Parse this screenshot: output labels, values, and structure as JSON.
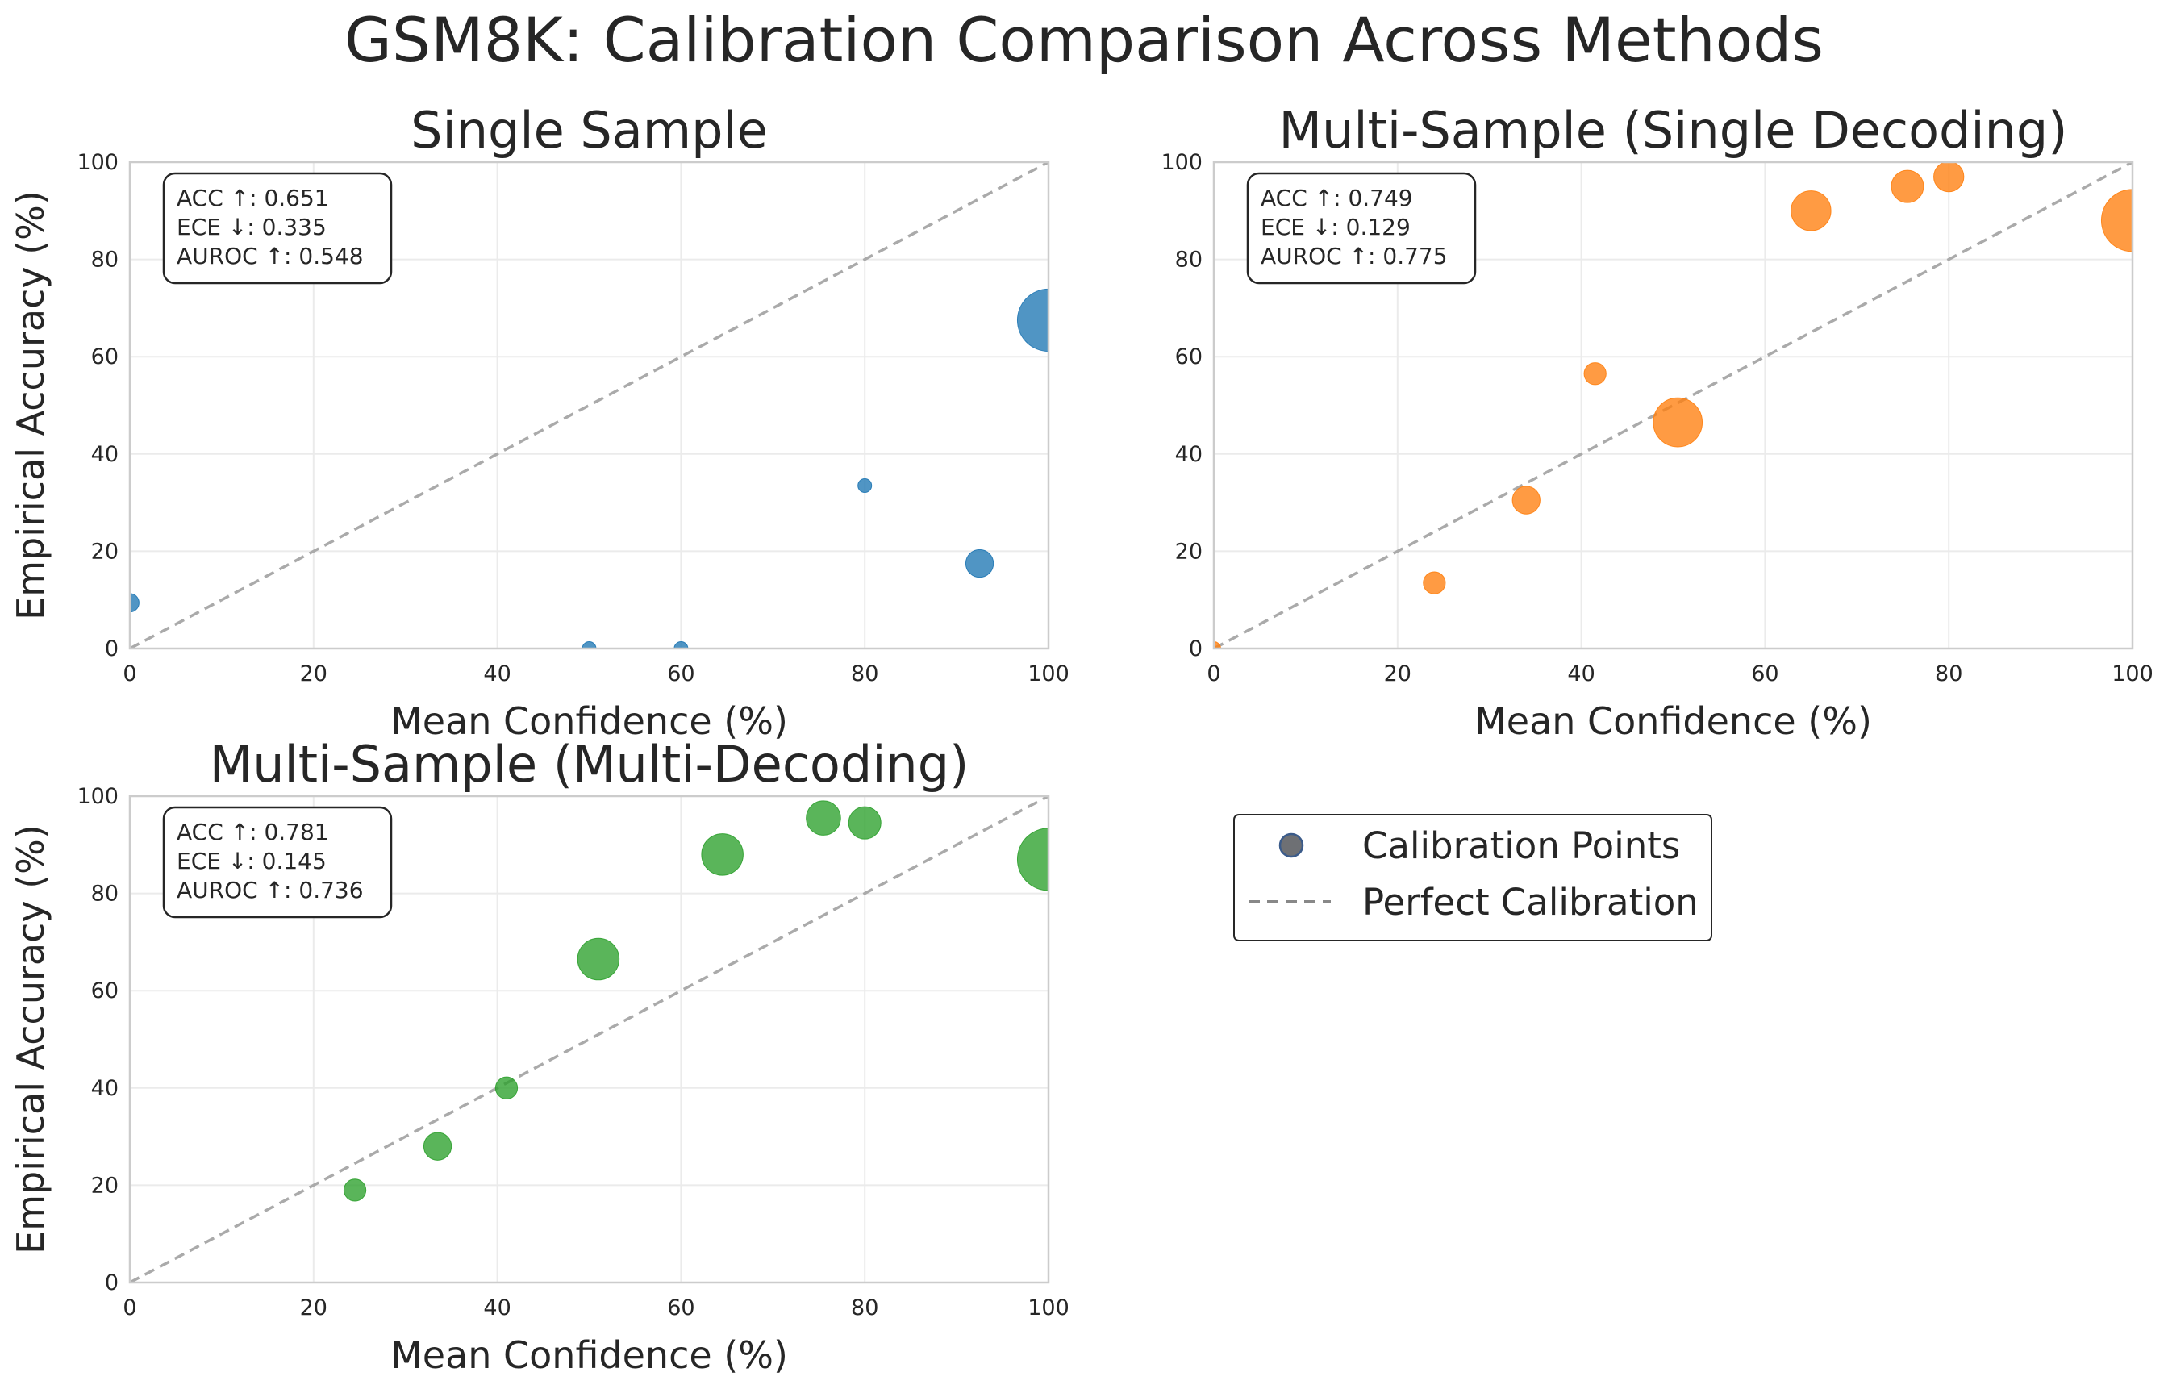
{
  "figure": {
    "title": "GSM8K: Calibration Comparison Across Methods"
  },
  "legend": {
    "points_label": "Calibration Points",
    "line_label": "Perfect Calibration"
  },
  "colors": {
    "single": "#1f77b4",
    "multi_single": "#ff7f0e",
    "multi_multi": "#2ca02c",
    "diagonal": "#aaaaaa",
    "axes_edge": "#cccccc",
    "grid": "#ebebeb"
  },
  "chart_data": [
    {
      "type": "scatter",
      "title": "Single Sample",
      "xlabel": "Mean Confidence (%)",
      "ylabel": "Empirical Accuracy (%)",
      "xlim": [
        0,
        100
      ],
      "ylim": [
        0,
        100
      ],
      "xticks": [
        "0",
        "20",
        "40",
        "60",
        "80",
        "100"
      ],
      "yticks": [
        "0",
        "20",
        "40",
        "60",
        "80",
        "100"
      ],
      "grid": true,
      "color": "#1f77b4",
      "stats": [
        "ACC ↑: 0.651",
        "ECE ↓: 0.335",
        "AUROC ↑: 0.548"
      ],
      "points": [
        {
          "x": 0,
          "y": 9.4,
          "weight": 2
        },
        {
          "x": 50,
          "y": 0,
          "weight": 1
        },
        {
          "x": 60,
          "y": 0,
          "weight": 1
        },
        {
          "x": 80,
          "y": 33.5,
          "weight": 1
        },
        {
          "x": 92.5,
          "y": 17.5,
          "weight": 5
        },
        {
          "x": 100,
          "y": 67.5,
          "weight": 28
        }
      ],
      "diagonal": [
        [
          0,
          0
        ],
        [
          100,
          100
        ]
      ]
    },
    {
      "type": "scatter",
      "title": "Multi-Sample (Single Decoding)",
      "xlabel": "Mean Confidence (%)",
      "ylabel": "",
      "xlim": [
        0,
        100
      ],
      "ylim": [
        0,
        100
      ],
      "xticks": [
        "0",
        "20",
        "40",
        "60",
        "80",
        "100"
      ],
      "yticks": [
        "0",
        "20",
        "40",
        "60",
        "80",
        "100"
      ],
      "grid": true,
      "color": "#ff7f0e",
      "stats": [
        "ACC ↑: 0.749",
        "ECE ↓: 0.129",
        "AUROC ↑: 0.775"
      ],
      "points": [
        {
          "x": 0,
          "y": 0,
          "weight": 1
        },
        {
          "x": 24,
          "y": 13.5,
          "weight": 3
        },
        {
          "x": 34,
          "y": 30.5,
          "weight": 5
        },
        {
          "x": 41.5,
          "y": 56.5,
          "weight": 3
        },
        {
          "x": 50.5,
          "y": 46.5,
          "weight": 17
        },
        {
          "x": 65,
          "y": 90,
          "weight": 11
        },
        {
          "x": 75.5,
          "y": 95,
          "weight": 7
        },
        {
          "x": 80,
          "y": 97,
          "weight": 6
        },
        {
          "x": 100,
          "y": 88,
          "weight": 28
        }
      ],
      "diagonal": [
        [
          0,
          0
        ],
        [
          100,
          100
        ]
      ]
    },
    {
      "type": "scatter",
      "title": "Multi-Sample (Multi-Decoding)",
      "xlabel": "Mean Confidence (%)",
      "ylabel": "Empirical Accuracy (%)",
      "xlim": [
        0,
        100
      ],
      "ylim": [
        0,
        100
      ],
      "xticks": [
        "0",
        "20",
        "40",
        "60",
        "80",
        "100"
      ],
      "yticks": [
        "0",
        "20",
        "40",
        "60",
        "80",
        "100"
      ],
      "grid": true,
      "color": "#2ca02c",
      "stats": [
        "ACC ↑: 0.781",
        "ECE ↓: 0.145",
        "AUROC ↑: 0.736"
      ],
      "points": [
        {
          "x": 24.5,
          "y": 19,
          "weight": 3
        },
        {
          "x": 33.5,
          "y": 28,
          "weight": 5
        },
        {
          "x": 41,
          "y": 40,
          "weight": 3
        },
        {
          "x": 51,
          "y": 66.5,
          "weight": 12
        },
        {
          "x": 64.5,
          "y": 88,
          "weight": 12
        },
        {
          "x": 75.5,
          "y": 95.5,
          "weight": 8
        },
        {
          "x": 80,
          "y": 94.5,
          "weight": 7
        },
        {
          "x": 100,
          "y": 87,
          "weight": 28
        }
      ],
      "diagonal": [
        [
          0,
          0
        ],
        [
          100,
          100
        ]
      ]
    }
  ]
}
